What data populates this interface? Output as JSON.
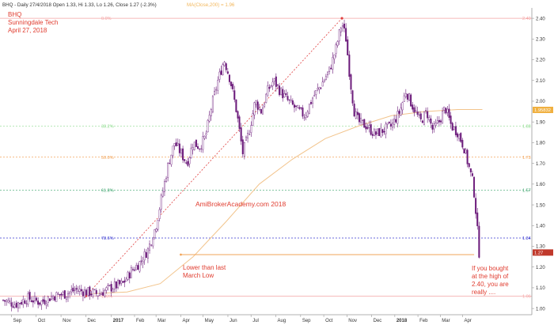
{
  "header": {
    "title_line": "BHQ - Daily 27/4/2018 Open 1.33, Hi 1.33, Lo 1.26, Close 1.27 (-2.3%)",
    "ma_label": "MA(Close,200) = 1.96"
  },
  "annotations": {
    "ticker": "BHQ",
    "company": "Sunningdale Tech",
    "date": "April 27, 2018",
    "watermark": "AmiBrokerAcademy.com  2018",
    "lower_than": "Lower than last",
    "march_low": "March Low",
    "if_line1": "If you bought",
    "if_line2": "at the high of",
    "if_line3": "2.40, you are",
    "if_line4": "really ...."
  },
  "colors": {
    "candle": "#6b1a7a",
    "ma": "#f2c48c",
    "fib_100": "#f4a3a3",
    "fib_382": "#8fdc8f",
    "fib_50": "#f2a55a",
    "fib_618": "#3aa36b",
    "fib_786": "#3a3ad0",
    "trend": "#e04040",
    "support": "#f2a55a",
    "text_red": "#e03c2f",
    "price_tag": "#c0392b",
    "ma_tag": "#f0b040"
  },
  "chart_data": {
    "type": "candlestick",
    "title": "BHQ - Daily 27/4/2018 Open 1.33, Hi 1.33, Lo 1.26, Close 1.27 (-2.3%)",
    "ylim": [
      0.97,
      2.45
    ],
    "y_ticks": [
      "1.00",
      "1.10",
      "1.20",
      "1.30",
      "1.40",
      "1.50",
      "1.60",
      "1.70",
      "1.80",
      "1.90",
      "2.00",
      "2.10",
      "2.20",
      "2.30",
      "2.40"
    ],
    "x_ticks": [
      {
        "label": "Sep",
        "frac": 0.02
      },
      {
        "label": "Oct",
        "frac": 0.08
      },
      {
        "label": "Nov",
        "frac": 0.14
      },
      {
        "label": "Dec",
        "frac": 0.2
      },
      {
        "label": "2017",
        "frac": 0.262,
        "bold": true
      },
      {
        "label": "Feb",
        "frac": 0.318
      },
      {
        "label": "Mar",
        "frac": 0.37
      },
      {
        "label": "Apr",
        "frac": 0.43
      },
      {
        "label": "May",
        "frac": 0.484
      },
      {
        "label": "Jun",
        "frac": 0.544
      },
      {
        "label": "Jul",
        "frac": 0.6
      },
      {
        "label": "Aug",
        "frac": 0.66
      },
      {
        "label": "Sep",
        "frac": 0.72
      },
      {
        "label": "Oct",
        "frac": 0.776
      },
      {
        "label": "Nov",
        "frac": 0.832
      },
      {
        "label": "Dec",
        "frac": 0.892
      },
      {
        "label": "2018",
        "frac": 0.948,
        "bold": true
      },
      {
        "label": "Feb",
        "frac": 1.004
      },
      {
        "label": "Mar",
        "frac": 1.058
      },
      {
        "label": "Apr",
        "frac": 1.112
      }
    ],
    "price_path": [
      [
        0.0,
        1.04
      ],
      [
        0.03,
        1.02
      ],
      [
        0.06,
        1.05
      ],
      [
        0.09,
        1.03
      ],
      [
        0.12,
        1.06
      ],
      [
        0.15,
        1.07
      ],
      [
        0.175,
        1.09
      ],
      [
        0.2,
        1.08
      ],
      [
        0.23,
        1.07
      ],
      [
        0.26,
        1.1
      ],
      [
        0.29,
        1.12
      ],
      [
        0.31,
        1.18
      ],
      [
        0.33,
        1.22
      ],
      [
        0.35,
        1.28
      ],
      [
        0.37,
        1.4
      ],
      [
        0.385,
        1.55
      ],
      [
        0.4,
        1.7
      ],
      [
        0.415,
        1.8
      ],
      [
        0.43,
        1.75
      ],
      [
        0.445,
        1.7
      ],
      [
        0.46,
        1.8
      ],
      [
        0.475,
        1.78
      ],
      [
        0.49,
        1.83
      ],
      [
        0.505,
        1.98
      ],
      [
        0.52,
        2.1
      ],
      [
        0.535,
        2.2
      ],
      [
        0.55,
        2.1
      ],
      [
        0.565,
        1.95
      ],
      [
        0.58,
        1.75
      ],
      [
        0.595,
        1.85
      ],
      [
        0.61,
        2.0
      ],
      [
        0.625,
        1.95
      ],
      [
        0.64,
        2.05
      ],
      [
        0.655,
        2.1
      ],
      [
        0.67,
        2.05
      ],
      [
        0.69,
        2.0
      ],
      [
        0.71,
        1.96
      ],
      [
        0.73,
        1.93
      ],
      [
        0.75,
        2.02
      ],
      [
        0.77,
        2.08
      ],
      [
        0.79,
        2.15
      ],
      [
        0.805,
        2.25
      ],
      [
        0.82,
        2.38
      ],
      [
        0.83,
        2.3
      ],
      [
        0.84,
        2.1
      ],
      [
        0.85,
        1.95
      ],
      [
        0.86,
        1.9
      ],
      [
        0.88,
        1.88
      ],
      [
        0.9,
        1.84
      ],
      [
        0.92,
        1.86
      ],
      [
        0.94,
        1.88
      ],
      [
        0.96,
        1.95
      ],
      [
        0.975,
        2.05
      ],
      [
        0.99,
        1.98
      ],
      [
        1.01,
        1.9
      ],
      [
        1.025,
        1.95
      ],
      [
        1.04,
        1.86
      ],
      [
        1.055,
        1.9
      ],
      [
        1.07,
        1.97
      ],
      [
        1.085,
        1.88
      ],
      [
        1.1,
        1.85
      ],
      [
        1.115,
        1.78
      ],
      [
        1.125,
        1.7
      ],
      [
        1.138,
        1.6
      ],
      [
        1.145,
        1.45
      ],
      [
        1.152,
        1.27
      ]
    ],
    "ma_path": [
      [
        0.2,
        1.07
      ],
      [
        0.3,
        1.08
      ],
      [
        0.38,
        1.12
      ],
      [
        0.46,
        1.25
      ],
      [
        0.54,
        1.42
      ],
      [
        0.62,
        1.6
      ],
      [
        0.7,
        1.72
      ],
      [
        0.78,
        1.82
      ],
      [
        0.86,
        1.88
      ],
      [
        0.94,
        1.93
      ],
      [
        1.02,
        1.95
      ],
      [
        1.1,
        1.96
      ],
      [
        1.16,
        1.96
      ]
    ],
    "fib_levels": [
      {
        "pct": "0.0%",
        "value": 2.4,
        "right": "2.40",
        "color_key": "fib_100"
      },
      {
        "pct": "38.2%",
        "value": 1.88,
        "right": "1.88",
        "color_key": "fib_382"
      },
      {
        "pct": "50.0%",
        "value": 1.73,
        "right": "1.73",
        "color_key": "fib_50"
      },
      {
        "pct": "61.8%",
        "value": 1.57,
        "right": "1.57",
        "color_key": "fib_618"
      },
      {
        "pct": "78.6%",
        "value": 1.34,
        "right": "1.34",
        "color_key": "fib_786"
      },
      {
        "pct": "100%",
        "value": 1.06,
        "right": "1.06",
        "color_key": "fib_100"
      }
    ],
    "trend_line": {
      "from": [
        0.2,
        1.06
      ],
      "to": [
        0.82,
        2.4
      ]
    },
    "support_line": {
      "from": [
        0.43,
        1.26
      ],
      "to": [
        1.14,
        1.26
      ]
    },
    "price_tags": [
      {
        "label": "1.95832",
        "value": 1.958,
        "color_key": "ma_tag"
      },
      {
        "label": "1.27",
        "value": 1.27,
        "color_key": "price_tag"
      }
    ]
  }
}
